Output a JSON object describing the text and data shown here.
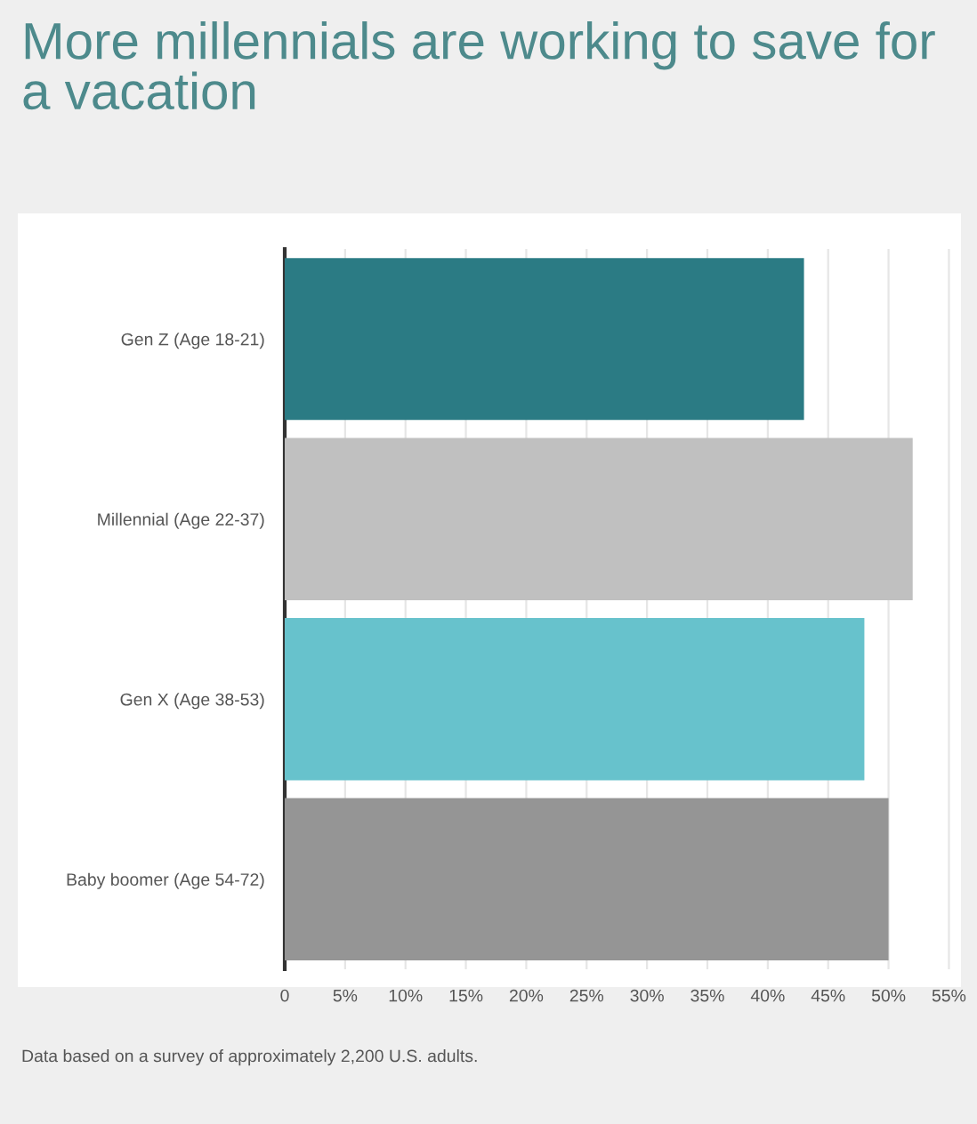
{
  "chart_data": {
    "type": "bar",
    "orientation": "horizontal",
    "title": "More millennials are working to save for a vacation",
    "categories": [
      "Gen Z (Age 18-21)",
      "Millennial (Age 22-37)",
      "Gen X (Age 38-53)",
      "Baby boomer (Age 54-72)"
    ],
    "values": [
      43,
      52,
      48,
      50
    ],
    "colors": [
      "#2b7b84",
      "#c0c0c0",
      "#67c2cc",
      "#959595"
    ],
    "xlim": [
      0,
      56
    ],
    "xticks": [
      {
        "value": 0,
        "label": "0"
      },
      {
        "value": 5,
        "label": "5%"
      },
      {
        "value": 10,
        "label": "10%"
      },
      {
        "value": 15,
        "label": "15%"
      },
      {
        "value": 20,
        "label": "20%"
      },
      {
        "value": 25,
        "label": "25%"
      },
      {
        "value": 30,
        "label": "30%"
      },
      {
        "value": 35,
        "label": "35%"
      },
      {
        "value": 40,
        "label": "40%"
      },
      {
        "value": 45,
        "label": "45%"
      },
      {
        "value": 50,
        "label": "50%"
      },
      {
        "value": 55,
        "label": "55%"
      }
    ],
    "grid": "x",
    "annotations": [
      "Data based on a survey of approximately 2,200 U.S. adults."
    ]
  }
}
